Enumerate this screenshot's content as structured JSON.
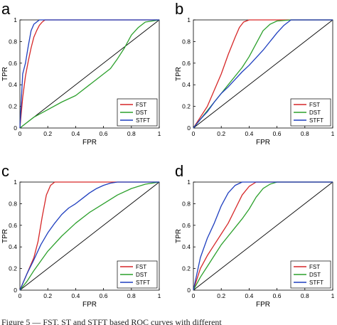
{
  "caption": "Figure 5 — FST, ST and STFT based ROC curves with different",
  "chart_data": [
    {
      "type": "line",
      "panel_label": "a",
      "xlabel": "FPR",
      "ylabel": "TPR",
      "xlim": [
        0,
        1
      ],
      "ylim": [
        0,
        1
      ],
      "xticks": [
        "0",
        "0.2",
        "0.4",
        "0.6",
        "0.8",
        "1"
      ],
      "yticks": [
        "0",
        "0.2",
        "0.4",
        "0.6",
        "0.8",
        "1"
      ],
      "grid": false,
      "legend_position": "bottom-right",
      "series": [
        {
          "name": "FST",
          "color": "#d62728",
          "x": [
            0,
            0.02,
            0.04,
            0.06,
            0.08,
            0.1,
            0.12,
            0.14,
            0.16,
            0.18,
            0.2,
            1
          ],
          "y": [
            0,
            0.28,
            0.48,
            0.62,
            0.74,
            0.84,
            0.9,
            0.95,
            0.98,
            1.0,
            1.0,
            1.0
          ]
        },
        {
          "name": "DST",
          "color": "#2ca02c",
          "x": [
            0,
            0.05,
            0.1,
            0.2,
            0.3,
            0.4,
            0.5,
            0.6,
            0.65,
            0.7,
            0.75,
            0.8,
            0.85,
            0.9,
            1
          ],
          "y": [
            0,
            0.05,
            0.1,
            0.17,
            0.24,
            0.3,
            0.4,
            0.5,
            0.55,
            0.64,
            0.74,
            0.86,
            0.93,
            0.98,
            1.0
          ]
        },
        {
          "name": "STFT",
          "color": "#1f3fbf",
          "x": [
            0,
            0.02,
            0.04,
            0.06,
            0.08,
            0.1,
            0.12,
            0.14,
            0.16,
            1
          ],
          "y": [
            0,
            0.5,
            0.6,
            0.76,
            0.9,
            0.96,
            0.98,
            1.0,
            1.0,
            1.0
          ]
        }
      ]
    },
    {
      "type": "line",
      "panel_label": "b",
      "xlabel": "FPR",
      "ylabel": "TPR",
      "xlim": [
        0,
        1
      ],
      "ylim": [
        0,
        1
      ],
      "xticks": [
        "0",
        "0.2",
        "0.4",
        "0.6",
        "0.8",
        "1"
      ],
      "yticks": [
        "0",
        "0.2",
        "0.4",
        "0.6",
        "0.8",
        "1"
      ],
      "grid": false,
      "legend_position": "bottom-right",
      "series": [
        {
          "name": "FST",
          "color": "#d62728",
          "x": [
            0,
            0.05,
            0.1,
            0.15,
            0.2,
            0.25,
            0.3,
            0.33,
            0.36,
            0.4,
            1
          ],
          "y": [
            0,
            0.1,
            0.2,
            0.35,
            0.5,
            0.68,
            0.84,
            0.93,
            0.98,
            1.0,
            1.0
          ]
        },
        {
          "name": "DST",
          "color": "#2ca02c",
          "x": [
            0,
            0.05,
            0.1,
            0.15,
            0.2,
            0.25,
            0.3,
            0.35,
            0.4,
            0.45,
            0.5,
            0.55,
            0.6,
            0.7,
            1
          ],
          "y": [
            0,
            0.08,
            0.16,
            0.24,
            0.32,
            0.4,
            0.48,
            0.56,
            0.66,
            0.78,
            0.9,
            0.96,
            0.99,
            1.0,
            1.0
          ]
        },
        {
          "name": "STFT",
          "color": "#1f3fbf",
          "x": [
            0,
            0.05,
            0.1,
            0.15,
            0.2,
            0.25,
            0.3,
            0.35,
            0.4,
            0.45,
            0.5,
            0.55,
            0.6,
            0.65,
            0.7,
            1
          ],
          "y": [
            0,
            0.08,
            0.15,
            0.24,
            0.32,
            0.38,
            0.45,
            0.52,
            0.58,
            0.65,
            0.72,
            0.8,
            0.88,
            0.95,
            1.0,
            1.0
          ]
        }
      ]
    },
    {
      "type": "line",
      "panel_label": "c",
      "xlabel": "FPR",
      "ylabel": "TPR",
      "xlim": [
        0,
        1
      ],
      "ylim": [
        0,
        1
      ],
      "xticks": [
        "0",
        "0.2",
        "0.4",
        "0.6",
        "0.8",
        "1"
      ],
      "yticks": [
        "0",
        "0.2",
        "0.4",
        "0.6",
        "0.8",
        "1"
      ],
      "grid": false,
      "legend_position": "bottom-right",
      "series": [
        {
          "name": "FST",
          "color": "#d62728",
          "x": [
            0,
            0.05,
            0.1,
            0.13,
            0.16,
            0.19,
            0.22,
            0.25,
            0.3,
            1
          ],
          "y": [
            0,
            0.15,
            0.3,
            0.45,
            0.68,
            0.88,
            0.97,
            1.0,
            1.0,
            1.0
          ]
        },
        {
          "name": "DST",
          "color": "#2ca02c",
          "x": [
            0,
            0.05,
            0.1,
            0.2,
            0.3,
            0.4,
            0.5,
            0.6,
            0.7,
            0.8,
            0.9,
            1
          ],
          "y": [
            0,
            0.08,
            0.18,
            0.36,
            0.5,
            0.62,
            0.72,
            0.8,
            0.88,
            0.94,
            0.98,
            1.0
          ]
        },
        {
          "name": "STFT",
          "color": "#1f3fbf",
          "x": [
            0,
            0.05,
            0.1,
            0.15,
            0.2,
            0.25,
            0.3,
            0.35,
            0.4,
            0.45,
            0.5,
            0.55,
            0.6,
            0.65,
            0.7,
            1
          ],
          "y": [
            0,
            0.15,
            0.28,
            0.42,
            0.53,
            0.62,
            0.7,
            0.76,
            0.8,
            0.85,
            0.9,
            0.94,
            0.97,
            0.99,
            1.0,
            1.0
          ]
        }
      ]
    },
    {
      "type": "line",
      "panel_label": "d",
      "xlabel": "FPR",
      "ylabel": "TPR",
      "xlim": [
        0,
        1
      ],
      "ylim": [
        0,
        1
      ],
      "xticks": [
        "0",
        "0.2",
        "0.4",
        "0.6",
        "0.8",
        "1"
      ],
      "yticks": [
        "0",
        "0.2",
        "0.4",
        "0.6",
        "0.8",
        "1"
      ],
      "grid": false,
      "legend_position": "bottom-right",
      "series": [
        {
          "name": "FST",
          "color": "#d62728",
          "x": [
            0,
            0.05,
            0.1,
            0.15,
            0.2,
            0.25,
            0.3,
            0.35,
            0.4,
            0.45,
            1
          ],
          "y": [
            0,
            0.2,
            0.32,
            0.42,
            0.52,
            0.62,
            0.75,
            0.88,
            0.96,
            1.0,
            1.0
          ]
        },
        {
          "name": "DST",
          "color": "#2ca02c",
          "x": [
            0,
            0.05,
            0.1,
            0.15,
            0.2,
            0.25,
            0.3,
            0.35,
            0.4,
            0.45,
            0.5,
            0.55,
            0.6,
            1
          ],
          "y": [
            0,
            0.12,
            0.22,
            0.32,
            0.42,
            0.5,
            0.58,
            0.66,
            0.75,
            0.86,
            0.94,
            0.98,
            1.0,
            1.0
          ]
        },
        {
          "name": "STFT",
          "color": "#1f3fbf",
          "x": [
            0,
            0.05,
            0.1,
            0.15,
            0.2,
            0.25,
            0.3,
            0.35,
            0.4,
            1
          ],
          "y": [
            0,
            0.3,
            0.48,
            0.62,
            0.78,
            0.9,
            0.97,
            1.0,
            1.0,
            1.0
          ]
        }
      ]
    }
  ]
}
